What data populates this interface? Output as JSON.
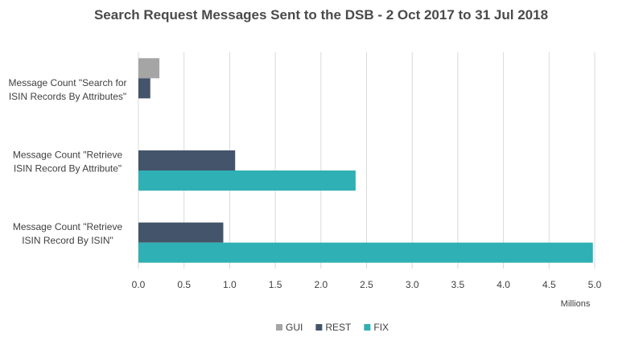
{
  "chart_data": {
    "type": "bar",
    "orientation": "horizontal",
    "title": "Search Request Messages Sent to the DSB - 2 Oct 2017 to 31 Jul 2018",
    "categories": [
      [
        "Message Count \"Search for",
        "ISIN Records By Attributes\""
      ],
      [
        "Message Count \"Retrieve",
        "ISIN Record By Attribute\""
      ],
      [
        "Message Count  \"Retrieve",
        "ISIN Record By ISIN\""
      ]
    ],
    "series": [
      {
        "name": "GUI",
        "color": "#a5a5a5",
        "values": [
          0.23,
          null,
          null
        ]
      },
      {
        "name": "REST",
        "color": "#44546a",
        "values": [
          0.13,
          1.06,
          0.93
        ]
      },
      {
        "name": "FIX",
        "color": "#2fb0b4",
        "values": [
          null,
          2.38,
          4.98
        ]
      }
    ],
    "xlim": [
      0,
      5.0
    ],
    "xticks": [
      "0.0",
      "0.5",
      "1.0",
      "1.5",
      "2.0",
      "2.5",
      "3.0",
      "3.5",
      "4.0",
      "4.5",
      "5.0"
    ],
    "xunit": "Millions",
    "grid": true,
    "legend_position": "bottom"
  }
}
